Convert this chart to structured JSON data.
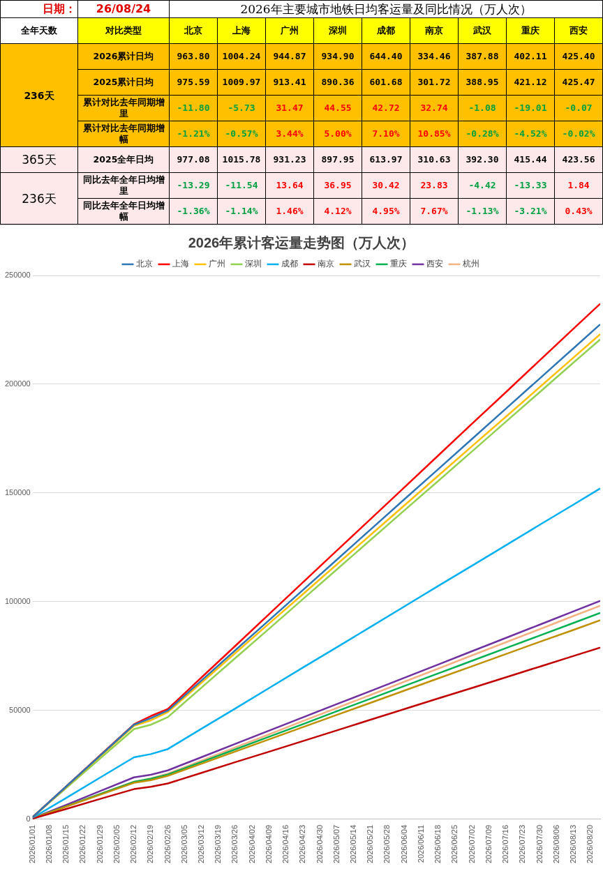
{
  "chart_data": [
    {
      "type": "other",
      "title": "2026年主要城市地铁日均客运量及同比情况（万人次）",
      "annotations": [
        "日期：",
        "26/08/24",
        "全年天数",
        "对比类型"
      ],
      "categories": [
        "北京",
        "上海",
        "广州",
        "深圳",
        "成都",
        "南京",
        "武汉",
        "重庆",
        "西安"
      ],
      "y_categories": [
        "2026累计日均",
        "2025累计日均",
        "累计对比去年同期增里",
        "累计对比去年同期增幅",
        "2025全年日均",
        "同比去年全年日均增里",
        "同比去年全年日均增幅"
      ],
      "y2_categories": [
        "236天",
        null,
        null,
        null,
        "365天",
        "236天",
        null
      ],
      "cell_labels": [
        [
          "963.80",
          "1004.24",
          "944.87",
          "934.90",
          "644.40",
          "334.46",
          "387.88",
          "402.11",
          "425.40"
        ],
        [
          "975.59",
          "1009.97",
          "913.41",
          "890.36",
          "601.68",
          "301.72",
          "388.95",
          "421.12",
          "425.47"
        ],
        [
          "-11.80",
          "-5.73",
          "31.47",
          "44.55",
          "42.72",
          "32.74",
          "-1.08",
          "-19.01",
          "-0.07"
        ],
        [
          "-1.21%",
          "-0.57%",
          "3.44%",
          "5.00%",
          "7.10%",
          "10.85%",
          "-0.28%",
          "-4.52%",
          "-0.02%"
        ],
        [
          "977.08",
          "1015.78",
          "931.23",
          "897.95",
          "613.97",
          "310.63",
          "392.30",
          "415.44",
          "423.56"
        ],
        [
          "-13.29",
          "-11.54",
          "13.64",
          "36.95",
          "30.42",
          "23.83",
          "-4.42",
          "-13.33",
          "1.84"
        ],
        [
          "-1.36%",
          "-1.14%",
          "1.46%",
          "4.12%",
          "4.95%",
          "7.67%",
          "-1.13%",
          "-3.21%",
          "0.43%"
        ]
      ]
    },
    {
      "type": "line",
      "title": "2026年累计客运量走势图（万人次）",
      "x": [
        "2026-01-01",
        "2026-01-15",
        "2026-01-29",
        "2026-02-12",
        "2026-02-19",
        "2026-02-26",
        "2026-03-12",
        "2026-03-26",
        "2026-04-09",
        "2026-04-23",
        "2026-05-07",
        "2026-05-21",
        "2026-06-04",
        "2026-06-18",
        "2026-07-02",
        "2026-07-16",
        "2026-07-30",
        "2026-08-13",
        "2026-08-24"
      ],
      "xlim": [
        "2026-01-01",
        "2026-08-24"
      ],
      "xticks": [
        {
          "value": "2026-01-01",
          "label": "2026/01/01"
        },
        {
          "value": "2026-01-08",
          "label": "2026/01/08"
        },
        {
          "value": "2026-01-15",
          "label": "2026/01/15"
        },
        {
          "value": "2026-01-22",
          "label": "2026/01/22"
        },
        {
          "value": "2026-01-29",
          "label": "2026/01/29"
        },
        {
          "value": "2026-02-05",
          "label": "2026/02/05"
        },
        {
          "value": "2026-02-12",
          "label": "2026/02/12"
        },
        {
          "value": "2026-02-19",
          "label": "2026/02/19"
        },
        {
          "value": "2026-02-26",
          "label": "2026/02/26"
        },
        {
          "value": "2026-03-05",
          "label": "2026/03/05"
        },
        {
          "value": "2026-03-12",
          "label": "2026/03/12"
        },
        {
          "value": "2026-03-19",
          "label": "2026/03/19"
        },
        {
          "value": "2026-03-26",
          "label": "2026/03/26"
        },
        {
          "value": "2026-04-02",
          "label": "2026/04/02"
        },
        {
          "value": "2026-04-09",
          "label": "2026/04/09"
        },
        {
          "value": "2026-04-16",
          "label": "2026/04/16"
        },
        {
          "value": "2026-04-23",
          "label": "2026/04/23"
        },
        {
          "value": "2026-04-30",
          "label": "2026/04/30"
        },
        {
          "value": "2026-05-07",
          "label": "2026/05/07"
        },
        {
          "value": "2026-05-14",
          "label": "2026/05/14"
        },
        {
          "value": "2026-05-21",
          "label": "2026/05/21"
        },
        {
          "value": "2026-05-28",
          "label": "2026/05/28"
        },
        {
          "value": "2026-06-04",
          "label": "2026/06/04"
        },
        {
          "value": "2026-06-11",
          "label": "2026/06/11"
        },
        {
          "value": "2026-06-18",
          "label": "2026/06/18"
        },
        {
          "value": "2026-06-25",
          "label": "2026/06/25"
        },
        {
          "value": "2026-07-02",
          "label": "2026/07/02"
        },
        {
          "value": "2026-07-09",
          "label": "2026/07/09"
        },
        {
          "value": "2026-07-16",
          "label": "2026/07/16"
        },
        {
          "value": "2026-07-23",
          "label": "2026/07/23"
        },
        {
          "value": "2026-07-30",
          "label": "2026/07/30"
        },
        {
          "value": "2026-08-06",
          "label": "2026/08/06"
        },
        {
          "value": "2026-08-13",
          "label": "2026/08/13"
        },
        {
          "value": "2026-08-20",
          "label": "2026/08/20"
        }
      ],
      "ylim": [
        0,
        250000
      ],
      "yticks": [
        0,
        50000,
        100000,
        150000,
        200000,
        250000
      ],
      "grid": "y",
      "legend": "top",
      "series": [
        {
          "name": "北京",
          "color": "#2e75b6",
          "values": [
            1000,
            15200,
            29300,
            43500,
            46500,
            50000,
            63900,
            77800,
            91600,
            105500,
            119400,
            133300,
            147200,
            161000,
            174900,
            188800,
            202700,
            216600,
            227500
          ]
        },
        {
          "name": "上海",
          "color": "#ff0000",
          "values": [
            1000,
            15200,
            29500,
            43700,
            47500,
            50700,
            65300,
            79800,
            94400,
            109000,
            123600,
            138100,
            152700,
            167300,
            181900,
            196400,
            211000,
            225600,
            237000
          ]
        },
        {
          "name": "广州",
          "color": "#ffc000",
          "values": [
            1000,
            15000,
            29000,
            43000,
            45500,
            49300,
            62900,
            76500,
            90100,
            103600,
            117200,
            130800,
            144400,
            158000,
            171600,
            185100,
            198700,
            212300,
            223000
          ]
        },
        {
          "name": "深圳",
          "color": "#92d050",
          "values": [
            1000,
            14500,
            28000,
            41500,
            43500,
            47000,
            60600,
            74200,
            87700,
            101300,
            114900,
            128500,
            142100,
            155600,
            169200,
            182800,
            196400,
            210000,
            220600
          ]
        },
        {
          "name": "成都",
          "color": "#00b0f0",
          "values": [
            700,
            9900,
            19200,
            28500,
            30000,
            32300,
            41700,
            51000,
            60400,
            69800,
            79100,
            88500,
            97900,
            107300,
            116600,
            126000,
            135400,
            144700,
            152100
          ]
        },
        {
          "name": "南京",
          "color": "#c00000",
          "values": [
            300,
            4800,
            9400,
            13900,
            15000,
            16500,
            21400,
            26300,
            31100,
            36000,
            40900,
            45800,
            50700,
            55600,
            60400,
            65300,
            70200,
            75100,
            78900
          ]
        },
        {
          "name": "武汉",
          "color": "#bf9000",
          "values": [
            400,
            5900,
            11300,
            16800,
            18000,
            20000,
            25600,
            31200,
            36800,
            42400,
            48000,
            53600,
            59200,
            64800,
            70400,
            76000,
            81600,
            87100,
            91500
          ]
        },
        {
          "name": "重庆",
          "color": "#00b050",
          "values": [
            400,
            6000,
            11600,
            17200,
            18700,
            20600,
            26400,
            32200,
            38000,
            43800,
            49700,
            55500,
            61300,
            67100,
            72900,
            78700,
            84500,
            90300,
            94900
          ]
        },
        {
          "name": "西安",
          "color": "#7030a0",
          "values": [
            500,
            6700,
            13000,
            19300,
            20500,
            22500,
            28600,
            34700,
            40800,
            46900,
            53000,
            59000,
            65100,
            71200,
            77300,
            83400,
            89500,
            95600,
            100400
          ]
        },
        {
          "name": "杭州",
          "color": "#f4b183",
          "values": [
            400,
            6000,
            11700,
            17300,
            18800,
            21000,
            27000,
            33100,
            39100,
            45200,
            51200,
            57200,
            63300,
            69300,
            75400,
            81400,
            87400,
            93500,
            98200
          ]
        }
      ]
    }
  ]
}
